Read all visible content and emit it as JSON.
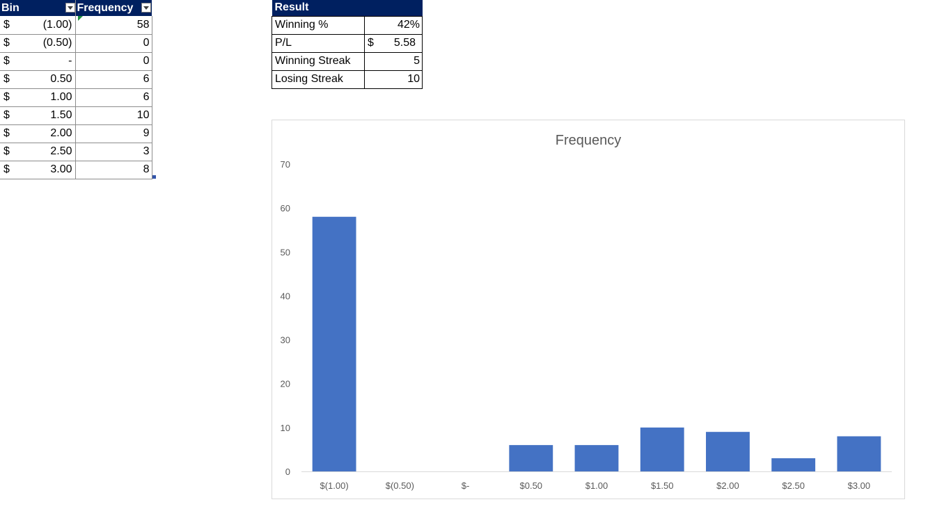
{
  "freq_table": {
    "headers": {
      "bin": "Bin",
      "frequency": "Frequency"
    },
    "rows": [
      {
        "currency": "$",
        "bin": "(1.00)",
        "frequency": "58"
      },
      {
        "currency": "$",
        "bin": "(0.50)",
        "frequency": "0"
      },
      {
        "currency": "$",
        "bin": "-",
        "frequency": "0"
      },
      {
        "currency": "$",
        "bin": "0.50",
        "frequency": "6"
      },
      {
        "currency": "$",
        "bin": "1.00",
        "frequency": "6"
      },
      {
        "currency": "$",
        "bin": "1.50",
        "frequency": "10"
      },
      {
        "currency": "$",
        "bin": "2.00",
        "frequency": "9"
      },
      {
        "currency": "$",
        "bin": "2.50",
        "frequency": "3"
      },
      {
        "currency": "$",
        "bin": "3.00",
        "frequency": "8"
      }
    ]
  },
  "result_table": {
    "header": "Result",
    "rows": [
      {
        "label": "Winning %",
        "value": "42%"
      },
      {
        "label": "P/L",
        "currency": "$",
        "value": "5.58"
      },
      {
        "label": "Winning Streak",
        "value": "5"
      },
      {
        "label": "Losing  Streak",
        "value": "10"
      }
    ]
  },
  "colors": {
    "header_bg": "#002060",
    "bar": "#4472C4",
    "axis_text": "#595959"
  },
  "chart_data": {
    "type": "bar",
    "title": "Frequency",
    "categories": [
      "$(1.00)",
      "$(0.50)",
      "$-",
      "$0.50",
      "$1.00",
      "$1.50",
      "$2.00",
      "$2.50",
      "$3.00"
    ],
    "values": [
      58,
      0,
      0,
      6,
      6,
      10,
      9,
      3,
      8
    ],
    "ylim": [
      0,
      70
    ],
    "yticks": [
      0,
      10,
      20,
      30,
      40,
      50,
      60,
      70
    ],
    "grid": false,
    "legend": "none"
  }
}
